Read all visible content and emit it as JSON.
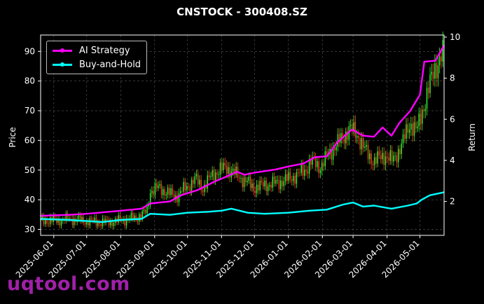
{
  "chart_data": {
    "type": "line",
    "title": "CNSTOCK - 300408.SZ",
    "ylabel": "Price",
    "y2label": "Return",
    "ylim": [
      28,
      95.5
    ],
    "y2lim": [
      0.35,
      10.1
    ],
    "yticks": [
      30,
      40,
      50,
      60,
      70,
      80,
      90
    ],
    "y2ticks": [
      2,
      4,
      6,
      8,
      10
    ],
    "xlim": [
      "2025-05-20",
      "2026-05-23"
    ],
    "xticks": [
      "2025-06-01",
      "2025-07-01",
      "2025-08-01",
      "2025-09-01",
      "2025-10-01",
      "2025-11-01",
      "2025-12-01",
      "2026-01-01",
      "2026-02-01",
      "2026-03-01",
      "2026-04-01",
      "2026-05-01"
    ],
    "grid": true,
    "legend_position": "top-left",
    "candles": {
      "up_color": "#33ff33",
      "down_color": "#ff4422",
      "points": [
        [
          "2025-05-20",
          33.0
        ],
        [
          "2025-06-01",
          33.0
        ],
        [
          "2025-06-15",
          33.5
        ],
        [
          "2025-07-01",
          32.8
        ],
        [
          "2025-07-15",
          32.3
        ],
        [
          "2025-08-01",
          33.0
        ],
        [
          "2025-08-15",
          34.0
        ],
        [
          "2025-08-25",
          36.0
        ],
        [
          "2025-08-28",
          43.0
        ],
        [
          "2025-09-05",
          44.0
        ],
        [
          "2025-09-20",
          41.0
        ],
        [
          "2025-10-01",
          44.5
        ],
        [
          "2025-10-08",
          47.0
        ],
        [
          "2025-10-15",
          44.0
        ],
        [
          "2025-10-25",
          49.0
        ],
        [
          "2025-11-05",
          51.0
        ],
        [
          "2025-11-12",
          49.0
        ],
        [
          "2025-11-20",
          47.0
        ],
        [
          "2025-12-01",
          44.0
        ],
        [
          "2025-12-10",
          45.0
        ],
        [
          "2025-12-20",
          45.5
        ],
        [
          "2026-01-01",
          47.0
        ],
        [
          "2026-01-15",
          49.5
        ],
        [
          "2026-01-22",
          53.0
        ],
        [
          "2026-01-30",
          51.0
        ],
        [
          "2026-02-10",
          57.0
        ],
        [
          "2026-02-20",
          61.0
        ],
        [
          "2026-02-25",
          64.0
        ],
        [
          "2026-03-05",
          62.0
        ],
        [
          "2026-03-12",
          56.5
        ],
        [
          "2026-03-20",
          53.0
        ],
        [
          "2026-03-30",
          55.0
        ],
        [
          "2026-04-06",
          53.0
        ],
        [
          "2026-04-15",
          59.0
        ],
        [
          "2026-04-22",
          66.0
        ],
        [
          "2026-04-28",
          63.0
        ],
        [
          "2026-05-03",
          70.0
        ],
        [
          "2026-05-08",
          76.0
        ],
        [
          "2026-05-14",
          84.0
        ],
        [
          "2026-05-20",
          88.0
        ],
        [
          "2026-05-23",
          89.0
        ]
      ]
    },
    "series": [
      {
        "name": "AI Strategy",
        "color": "#ff00ff",
        "axis": "right",
        "points": [
          [
            "2025-05-20",
            1.3
          ],
          [
            "2025-06-15",
            1.35
          ],
          [
            "2025-07-01",
            1.4
          ],
          [
            "2025-08-01",
            1.55
          ],
          [
            "2025-08-20",
            1.65
          ],
          [
            "2025-08-28",
            1.9
          ],
          [
            "2025-09-15",
            2.0
          ],
          [
            "2025-09-25",
            2.3
          ],
          [
            "2025-10-10",
            2.55
          ],
          [
            "2025-10-25",
            2.95
          ],
          [
            "2025-11-05",
            3.2
          ],
          [
            "2025-11-15",
            3.45
          ],
          [
            "2025-11-22",
            3.3
          ],
          [
            "2025-12-01",
            3.4
          ],
          [
            "2025-12-20",
            3.55
          ],
          [
            "2026-01-01",
            3.7
          ],
          [
            "2026-01-15",
            3.85
          ],
          [
            "2026-01-25",
            4.15
          ],
          [
            "2026-02-05",
            4.2
          ],
          [
            "2026-02-15",
            4.9
          ],
          [
            "2026-02-28",
            5.5
          ],
          [
            "2026-03-10",
            5.2
          ],
          [
            "2026-03-20",
            5.15
          ],
          [
            "2026-03-28",
            5.6
          ],
          [
            "2026-04-05",
            5.2
          ],
          [
            "2026-04-12",
            5.8
          ],
          [
            "2026-04-22",
            6.4
          ],
          [
            "2026-05-01",
            7.2
          ],
          [
            "2026-05-05",
            8.8
          ],
          [
            "2026-05-15",
            8.85
          ],
          [
            "2026-05-23",
            9.6
          ]
        ]
      },
      {
        "name": "Buy-and-Hold",
        "color": "#00ffff",
        "axis": "right",
        "points": [
          [
            "2025-05-20",
            1.15
          ],
          [
            "2025-06-15",
            1.1
          ],
          [
            "2025-07-15",
            1.0
          ],
          [
            "2025-08-01",
            1.1
          ],
          [
            "2025-08-20",
            1.15
          ],
          [
            "2025-08-28",
            1.4
          ],
          [
            "2025-09-15",
            1.35
          ],
          [
            "2025-10-01",
            1.45
          ],
          [
            "2025-10-20",
            1.5
          ],
          [
            "2025-11-01",
            1.55
          ],
          [
            "2025-11-10",
            1.65
          ],
          [
            "2025-11-25",
            1.45
          ],
          [
            "2025-12-10",
            1.4
          ],
          [
            "2026-01-01",
            1.45
          ],
          [
            "2026-01-20",
            1.55
          ],
          [
            "2026-02-05",
            1.6
          ],
          [
            "2026-02-20",
            1.85
          ],
          [
            "2026-03-01",
            1.95
          ],
          [
            "2026-03-10",
            1.75
          ],
          [
            "2026-03-20",
            1.8
          ],
          [
            "2026-04-05",
            1.65
          ],
          [
            "2026-04-20",
            1.8
          ],
          [
            "2026-04-28",
            1.9
          ],
          [
            "2026-05-03",
            2.1
          ],
          [
            "2026-05-10",
            2.3
          ],
          [
            "2026-05-23",
            2.45
          ]
        ]
      }
    ]
  },
  "watermark": "uqtool.com"
}
